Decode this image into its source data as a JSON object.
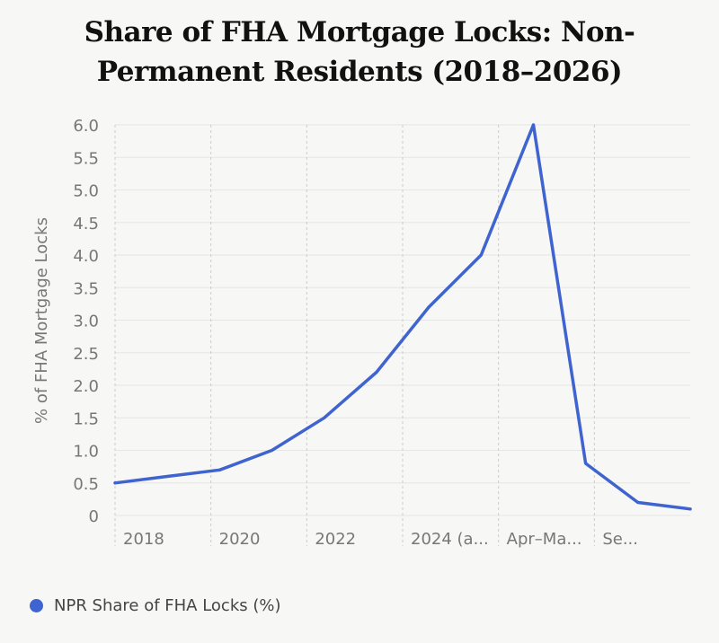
{
  "title_line1": "Share of FHA Mortgage Locks: Non-",
  "title_line2": "Permanent Residents (2018–2026)",
  "colors": {
    "series": "#3f63cf",
    "axis_text": "#777777",
    "grid": "#cccccc",
    "background": "#f7f7f5"
  },
  "chart_data": {
    "type": "line",
    "ylabel": "% of FHA Mortgage Locks",
    "ylim": [
      0,
      6.0
    ],
    "yticks": [
      "0",
      "0.5",
      "1.0",
      "1.5",
      "2.0",
      "2.5",
      "3.0",
      "3.5",
      "4.0",
      "4.5",
      "5.0",
      "5.5",
      "6.0"
    ],
    "xtick_labels": [
      "2018",
      "2020",
      "2022",
      "2024 (a...",
      "Apr–Ma...",
      "Se..."
    ],
    "grid": true,
    "legend_position": "bottom-left",
    "series": [
      {
        "name": "NPR Share of FHA Locks (%)",
        "values": [
          0.5,
          0.6,
          0.7,
          1.0,
          1.5,
          2.2,
          3.2,
          4.0,
          6.0,
          0.8,
          0.2,
          0.1
        ]
      }
    ]
  }
}
